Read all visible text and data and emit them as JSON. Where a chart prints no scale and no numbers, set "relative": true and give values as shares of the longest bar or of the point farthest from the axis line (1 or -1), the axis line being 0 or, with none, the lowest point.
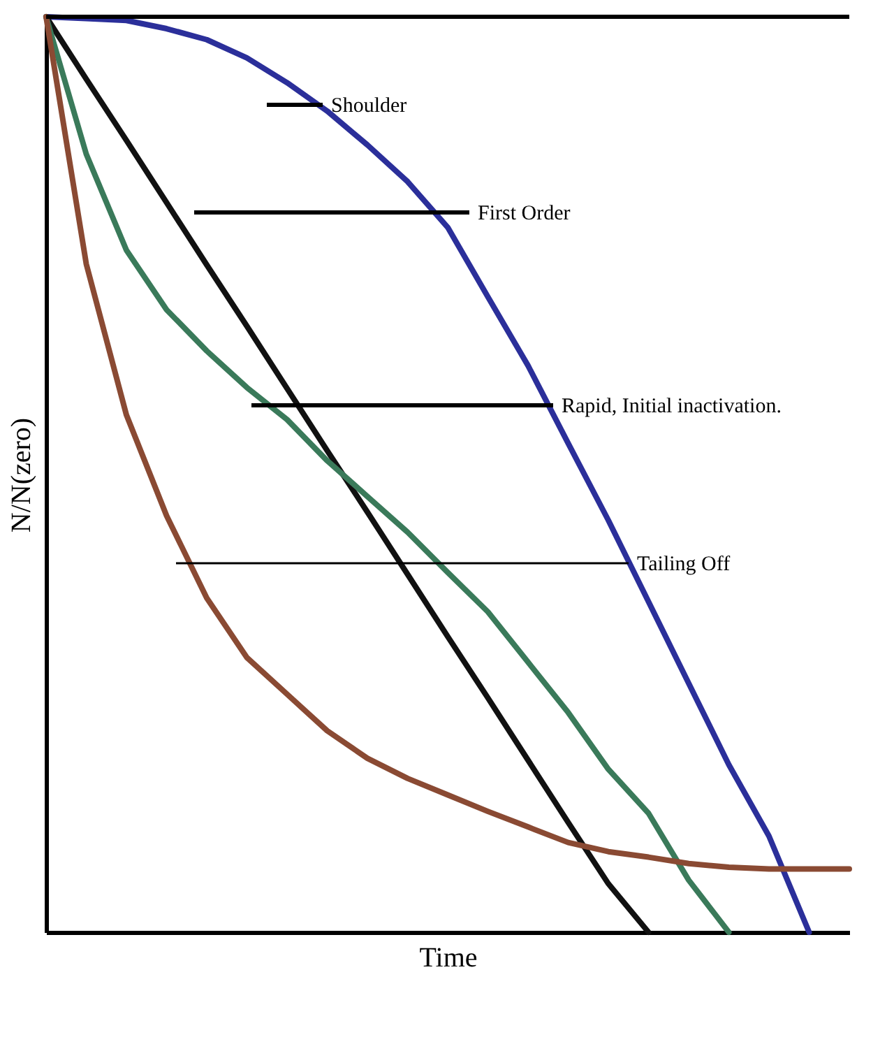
{
  "chart_data": {
    "type": "line",
    "relative": true,
    "xlabel": "Time",
    "ylabel": "N/N(zero)",
    "marker": "none",
    "line_style": "solid",
    "categories": [
      null,
      null,
      null,
      null,
      null,
      null,
      null,
      null,
      null,
      null,
      null,
      null,
      null,
      null,
      null,
      null,
      null,
      null,
      null,
      null,
      null
    ],
    "series": [
      {
        "color": "#2b2f9a",
        "values": [
          1,
          0.998,
          0.996,
          0.987,
          0.975,
          0.955,
          0.928,
          0.897,
          0.86,
          0.82,
          0.77,
          0.694,
          0.619,
          0.534,
          0.45,
          0.361,
          0.272,
          0.183,
          0.105,
          0,
          null
        ]
      },
      {
        "color": "#111111",
        "values": [
          1,
          0.932,
          0.865,
          0.797,
          0.729,
          0.662,
          0.594,
          0.526,
          0.459,
          0.391,
          0.323,
          0.256,
          0.188,
          0.12,
          0.053,
          0,
          null,
          null,
          null,
          null,
          null
        ]
      },
      {
        "color": "#3a7a5a",
        "values": [
          1,
          0.85,
          0.745,
          0.68,
          0.635,
          0.595,
          0.56,
          0.515,
          0.476,
          0.437,
          0.393,
          0.35,
          0.295,
          0.24,
          0.178,
          0.13,
          0.057,
          0,
          null,
          null,
          null
        ]
      },
      {
        "color": "#8a4a33",
        "values": [
          1,
          0.73,
          0.565,
          0.455,
          0.365,
          0.3,
          0.26,
          0.22,
          0.19,
          0.168,
          0.15,
          0.132,
          0.115,
          0.098,
          0.088,
          0.082,
          0.075,
          0.071,
          0.069,
          0.069,
          0.069
        ]
      }
    ],
    "annotations": [
      "Shoulder",
      "First Order",
      "Rapid, Initial inactivation.",
      "Tailing Off"
    ]
  }
}
